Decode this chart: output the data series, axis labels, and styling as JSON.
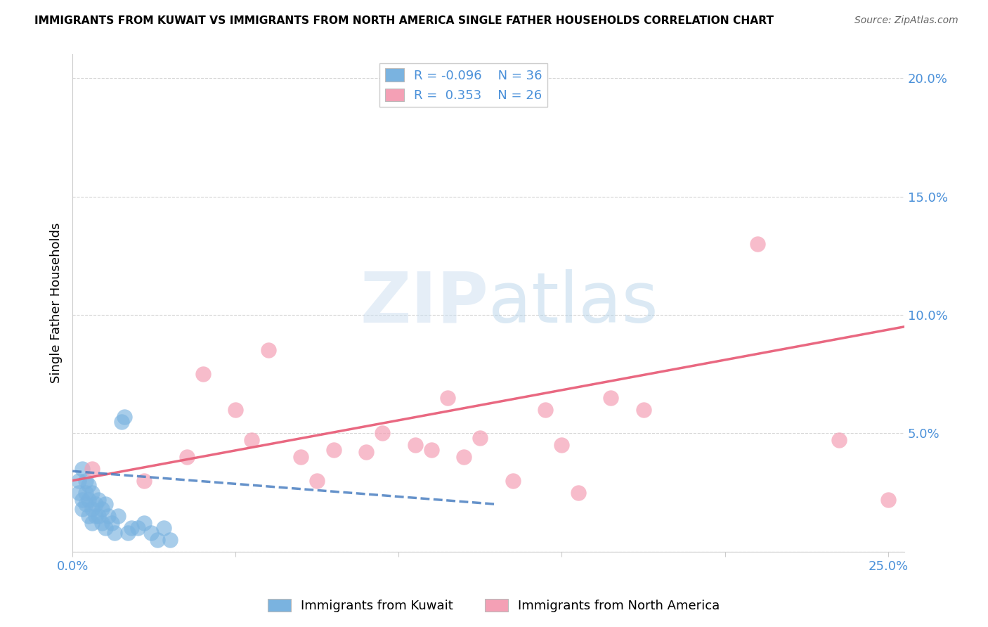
{
  "title": "IMMIGRANTS FROM KUWAIT VS IMMIGRANTS FROM NORTH AMERICA SINGLE FATHER HOUSEHOLDS CORRELATION CHART",
  "source": "Source: ZipAtlas.com",
  "ylabel": "Single Father Households",
  "ylim": [
    0,
    0.21
  ],
  "xlim": [
    0,
    0.255
  ],
  "yticks": [
    0.0,
    0.05,
    0.1,
    0.15,
    0.2
  ],
  "ytick_labels": [
    "",
    "5.0%",
    "10.0%",
    "15.0%",
    "20.0%"
  ],
  "xticks": [
    0.0,
    0.05,
    0.1,
    0.15,
    0.2,
    0.25
  ],
  "xtick_labels": [
    "0.0%",
    "",
    "",
    "",
    "",
    "25.0%"
  ],
  "legend_label1": "Immigrants from Kuwait",
  "legend_label2": "Immigrants from North America",
  "R1": -0.096,
  "N1": 36,
  "R2": 0.353,
  "N2": 26,
  "blue_color": "#7ab3e0",
  "pink_color": "#f4a0b5",
  "blue_line_color": "#4a7fc1",
  "pink_line_color": "#e8607a",
  "watermark_zip": "ZIP",
  "watermark_atlas": "atlas",
  "blue_scatter_x": [
    0.002,
    0.002,
    0.003,
    0.003,
    0.003,
    0.004,
    0.004,
    0.004,
    0.005,
    0.005,
    0.005,
    0.006,
    0.006,
    0.006,
    0.007,
    0.007,
    0.008,
    0.008,
    0.009,
    0.009,
    0.01,
    0.01,
    0.011,
    0.012,
    0.013,
    0.014,
    0.015,
    0.016,
    0.017,
    0.018,
    0.02,
    0.022,
    0.024,
    0.026,
    0.028,
    0.03
  ],
  "blue_scatter_y": [
    0.03,
    0.025,
    0.035,
    0.022,
    0.018,
    0.03,
    0.025,
    0.02,
    0.028,
    0.022,
    0.015,
    0.025,
    0.018,
    0.012,
    0.02,
    0.015,
    0.022,
    0.015,
    0.018,
    0.012,
    0.02,
    0.01,
    0.015,
    0.012,
    0.008,
    0.015,
    0.055,
    0.057,
    0.008,
    0.01,
    0.01,
    0.012,
    0.008,
    0.005,
    0.01,
    0.005
  ],
  "pink_scatter_x": [
    0.006,
    0.022,
    0.035,
    0.05,
    0.06,
    0.07,
    0.08,
    0.095,
    0.105,
    0.115,
    0.125,
    0.135,
    0.145,
    0.155,
    0.165,
    0.04,
    0.055,
    0.075,
    0.09,
    0.11,
    0.12,
    0.175,
    0.15,
    0.21,
    0.235,
    0.25
  ],
  "pink_scatter_y": [
    0.035,
    0.03,
    0.04,
    0.06,
    0.085,
    0.04,
    0.043,
    0.05,
    0.045,
    0.065,
    0.048,
    0.03,
    0.06,
    0.025,
    0.065,
    0.075,
    0.047,
    0.03,
    0.042,
    0.043,
    0.04,
    0.06,
    0.045,
    0.13,
    0.047,
    0.022
  ],
  "pink_line_x0": 0.0,
  "pink_line_y0": 0.03,
  "pink_line_x1": 0.255,
  "pink_line_y1": 0.095,
  "blue_line_x0": 0.0,
  "blue_line_y0": 0.034,
  "blue_line_x1": 0.13,
  "blue_line_y1": 0.02
}
